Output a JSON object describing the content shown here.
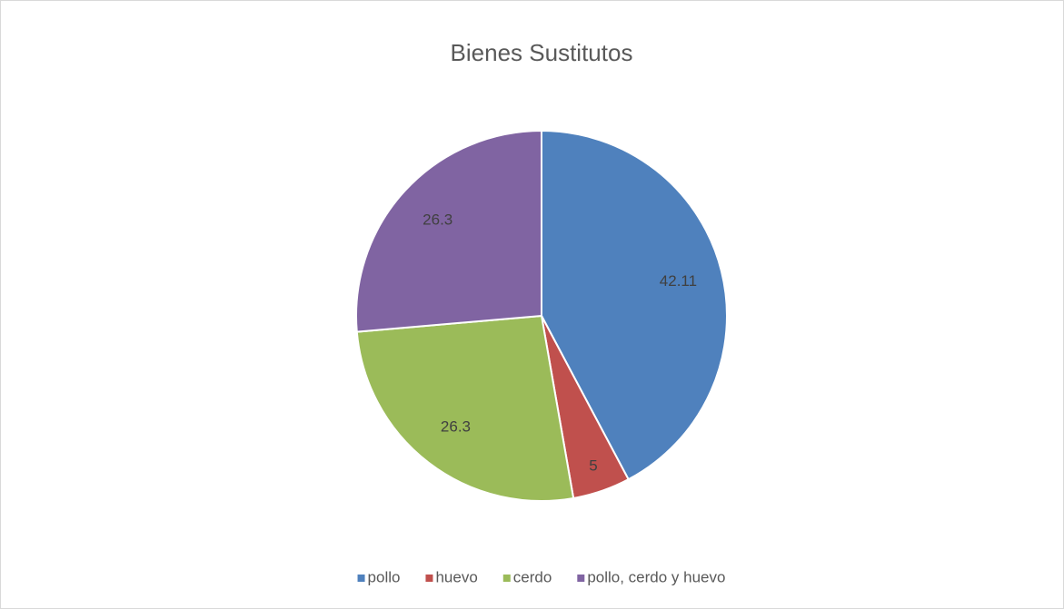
{
  "chart_data": {
    "type": "pie",
    "title": "Bienes Sustitutos",
    "categories": [
      "pollo",
      "huevo",
      "cerdo",
      "pollo, cerdo y huevo"
    ],
    "values": [
      42.11,
      5,
      26.3,
      26.3
    ],
    "colors": [
      "#4f81bd",
      "#c0504d",
      "#9bbb59",
      "#8064a2"
    ],
    "legend": "bottom"
  }
}
